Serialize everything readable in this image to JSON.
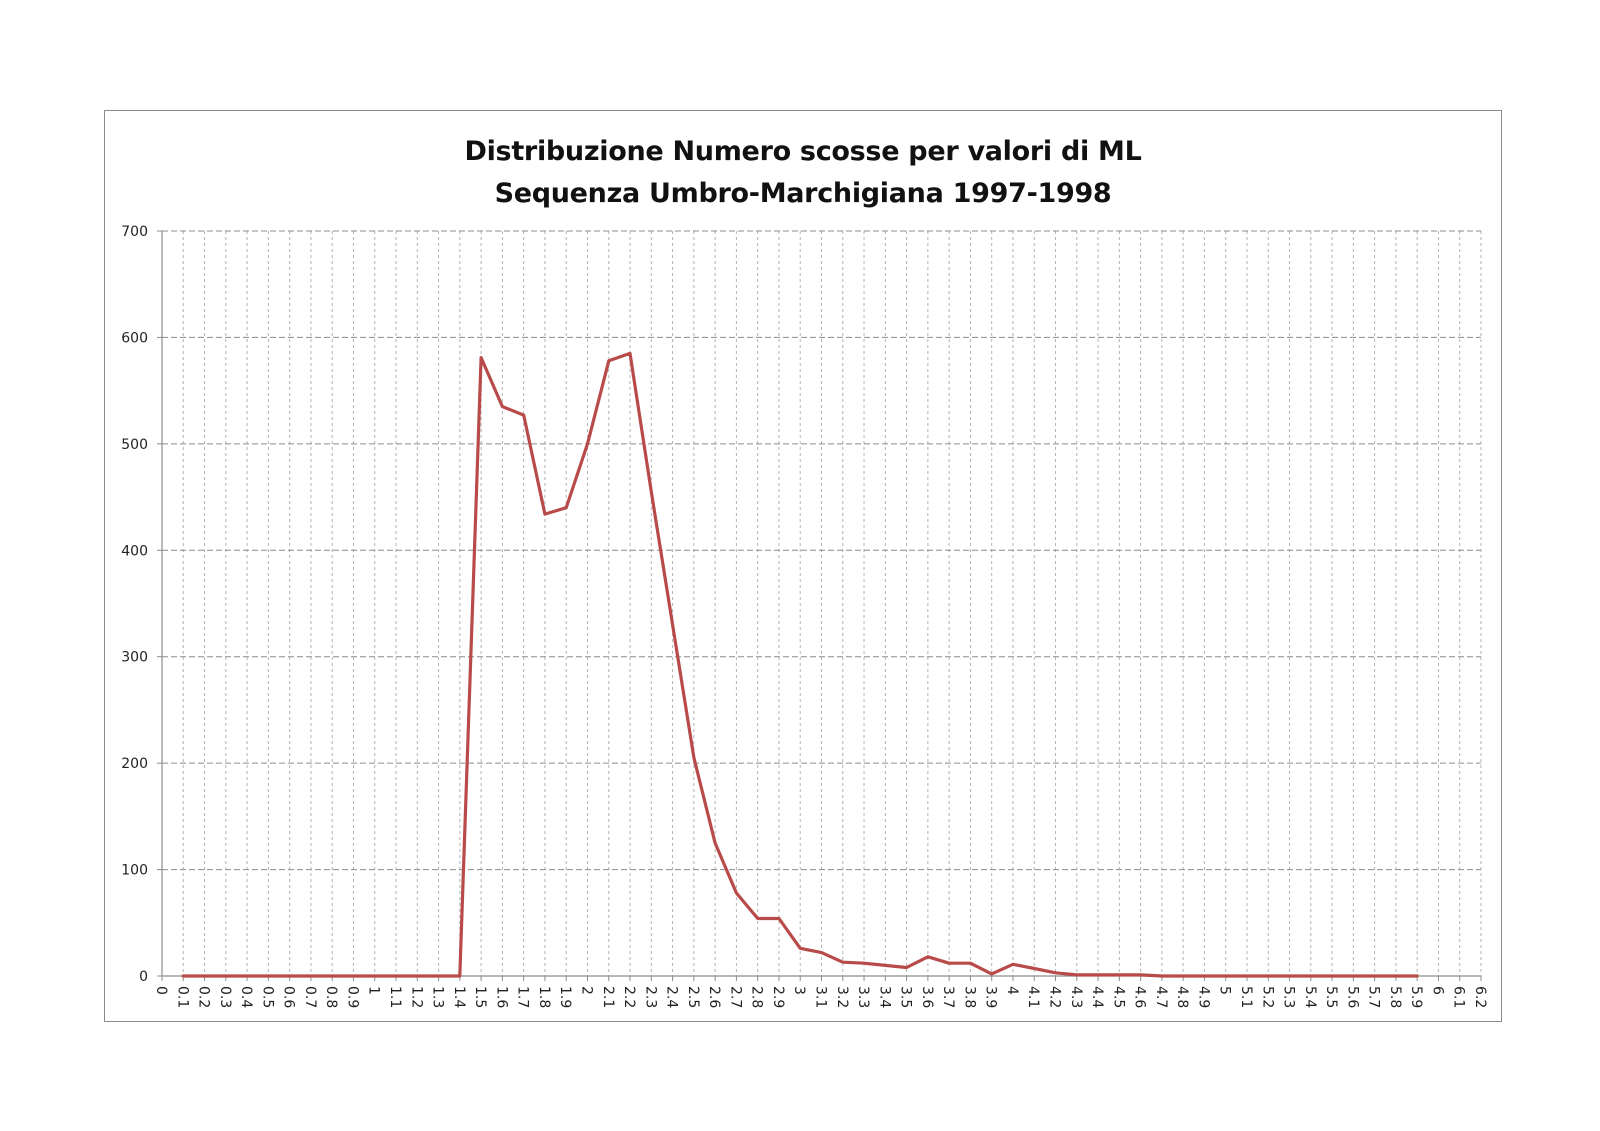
{
  "chart_data": {
    "type": "line",
    "title": "Distribuzione Numero scosse per valori di ML",
    "subtitle": "Sequenza Umbro-Marchigiana 1997-1998",
    "xlabel": "",
    "ylabel": "",
    "ylim": [
      0,
      700
    ],
    "yticks": [
      "0",
      "100",
      "200",
      "300",
      "400",
      "500",
      "600",
      "700"
    ],
    "categories": [
      "0",
      "0.1",
      "0.2",
      "0.3",
      "0.4",
      "0.5",
      "0.6",
      "0.7",
      "0.8",
      "0.9",
      "1",
      "1.1",
      "1.2",
      "1.3",
      "1.4",
      "1.5",
      "1.6",
      "1.7",
      "1.8",
      "1.9",
      "2",
      "2.1",
      "2.2",
      "2.3",
      "2.4",
      "2.5",
      "2.6",
      "2.7",
      "2.8",
      "2.9",
      "3",
      "3.1",
      "3.2",
      "3.3",
      "3.4",
      "3.5",
      "3.6",
      "3.7",
      "3.8",
      "3.9",
      "4",
      "4.1",
      "4.2",
      "4.3",
      "4.4",
      "4.5",
      "4.6",
      "4.7",
      "4.8",
      "4.9",
      "5",
      "5.1",
      "5.2",
      "5.3",
      "5.4",
      "5.5",
      "5.6",
      "5.7",
      "5.8",
      "5.9",
      "6",
      "6.1",
      "6.2"
    ],
    "grid": {
      "horizontal": true,
      "vertical": true,
      "style": "dashed"
    },
    "legend": "none",
    "series": [
      {
        "x": [
          "0.1",
          "0.2",
          "0.3",
          "0.4",
          "0.5",
          "0.6",
          "0.7",
          "0.8",
          "0.9",
          "1",
          "1.1",
          "1.2",
          "1.3",
          "1.4",
          "1.5",
          "1.6",
          "1.7",
          "1.8",
          "1.9",
          "2",
          "2.1",
          "2.2",
          "2.3",
          "2.4",
          "2.5",
          "2.6",
          "2.7",
          "2.8",
          "2.9",
          "3",
          "3.1",
          "3.2",
          "3.3",
          "3.4",
          "3.5",
          "3.6",
          "3.7",
          "3.8",
          "3.9",
          "4",
          "4.1",
          "4.2",
          "4.3",
          "4.4",
          "4.5",
          "4.6",
          "4.7",
          "4.8",
          "4.9",
          "5",
          "5.1",
          "5.2",
          "5.3",
          "5.4",
          "5.5",
          "5.6",
          "5.7",
          "5.8",
          "5.9"
        ],
        "values": [
          0,
          0,
          0,
          0,
          0,
          0,
          0,
          0,
          0,
          0,
          0,
          0,
          0,
          0,
          581,
          535,
          527,
          434,
          440,
          500,
          578,
          585,
          455,
          330,
          205,
          125,
          78,
          54,
          54,
          26,
          22,
          13,
          12,
          10,
          8,
          18,
          12,
          12,
          2,
          11,
          7,
          3,
          1,
          1,
          1,
          1,
          0,
          0,
          0,
          0,
          0,
          0,
          0,
          0,
          0,
          0,
          0,
          0,
          0
        ],
        "color": "#b84b49"
      }
    ]
  }
}
